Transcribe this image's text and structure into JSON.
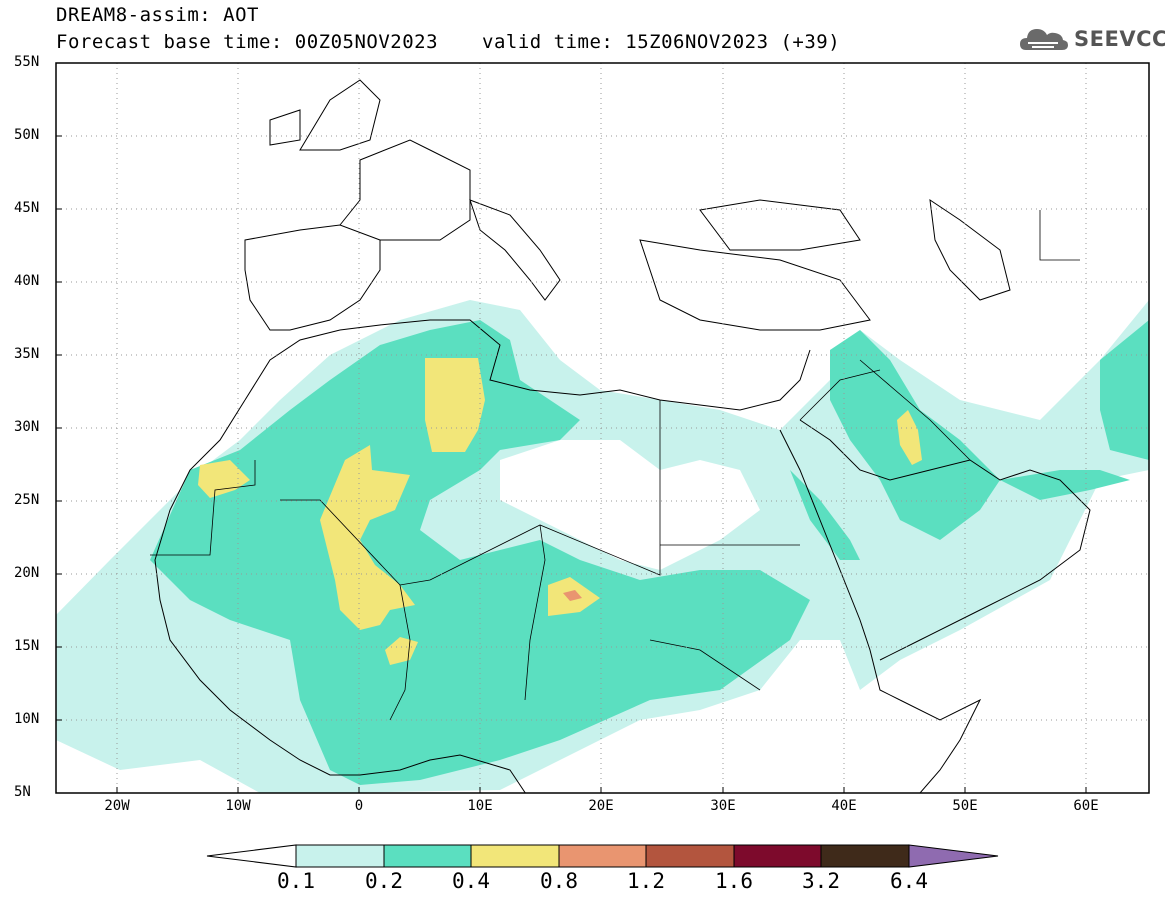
{
  "header": {
    "model_title": "DREAM8-assim: AOT",
    "base_time": "Forecast base time: 00Z05NOV2023",
    "valid_time": "valid time: 15Z06NOV2023 (+39)"
  },
  "logo": {
    "text": "SEEVCCC",
    "icon": "cloud-icon"
  },
  "map": {
    "lat_ticks": [
      "55N",
      "50N",
      "45N",
      "40N",
      "35N",
      "30N",
      "25N",
      "20N",
      "15N",
      "10N",
      "5N"
    ],
    "lon_ticks": [
      "20W",
      "10W",
      "0",
      "10E",
      "20E",
      "30E",
      "40E",
      "50E",
      "60E"
    ],
    "lon_range": [
      -25,
      65
    ],
    "lat_range": [
      5,
      55
    ],
    "grid": "dotted"
  },
  "colorbar": {
    "labels": [
      "0.1",
      "0.2",
      "0.4",
      "0.8",
      "1.2",
      "1.6",
      "3.2",
      "6.4"
    ],
    "colors": [
      "#c8f2ec",
      "#5bdfc0",
      "#f2e679",
      "#e99570",
      "#b3553e",
      "#7d0a2c",
      "#3f2a1a",
      "#8f6bb0"
    ]
  }
}
